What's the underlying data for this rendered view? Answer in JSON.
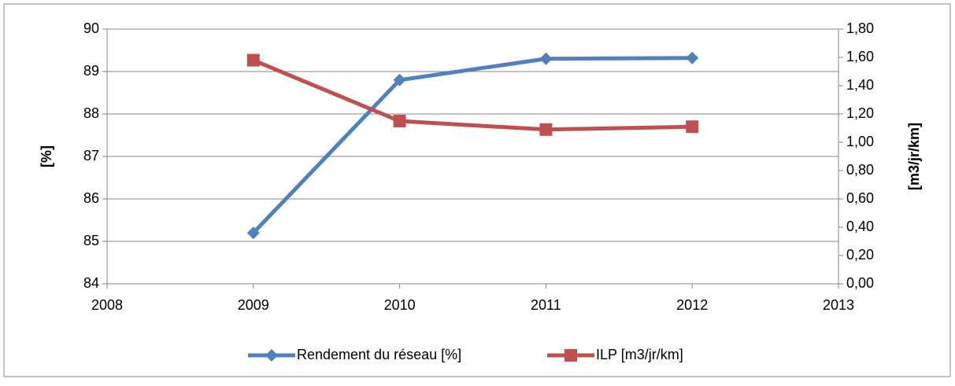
{
  "chart_data": {
    "type": "line",
    "x": [
      2009,
      2010,
      2011,
      2012
    ],
    "xlim": [
      2008,
      2013
    ],
    "xticks": [
      2008,
      2009,
      2010,
      2011,
      2012,
      2013
    ],
    "ylim": [
      84,
      90
    ],
    "yticks": [
      84,
      85,
      86,
      87,
      88,
      89,
      90
    ],
    "y2lim": [
      0,
      1.8
    ],
    "y2ticks": [
      {
        "value": 0,
        "label": "0,00"
      },
      {
        "value": 0.2,
        "label": "0,20"
      },
      {
        "value": 0.4,
        "label": "0,40"
      },
      {
        "value": 0.6,
        "label": "0,60"
      },
      {
        "value": 0.8,
        "label": "0,80"
      },
      {
        "value": 1.0,
        "label": "1,00"
      },
      {
        "value": 1.2,
        "label": "1,20"
      },
      {
        "value": 1.4,
        "label": "1,40"
      },
      {
        "value": 1.6,
        "label": "1,60"
      },
      {
        "value": 1.8,
        "label": "1,80"
      }
    ],
    "ylabel": "[%]",
    "y2label": "[m3/jr/km]",
    "grid": true,
    "legend": "bottom",
    "series": [
      {
        "name": "Rendement du réseau [%]",
        "color": "#4f81bd",
        "marker": "diamond",
        "values": [
          85.2,
          88.8,
          89.3,
          89.32
        ]
      },
      {
        "name": "ILP [m3/jr/km]",
        "color": "#c0504d",
        "marker": "square",
        "axis": "y2",
        "values": [
          1.58,
          1.15,
          1.09,
          1.11
        ]
      }
    ]
  }
}
